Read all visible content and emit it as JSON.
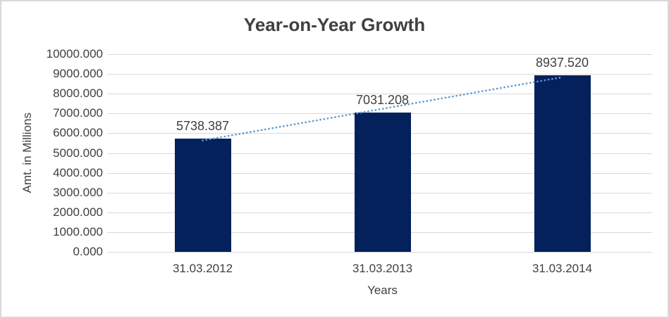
{
  "chart_data": {
    "type": "bar",
    "title": "Year-on-Year Growth",
    "xlabel": "Years",
    "ylabel": "Amt. in Millions",
    "categories": [
      "31.03.2012",
      "31.03.2013",
      "31.03.2014"
    ],
    "values": [
      5738.387,
      7031.208,
      8937.52
    ],
    "data_labels": [
      "5738.387",
      "7031.208",
      "8937.520"
    ],
    "ylim": [
      0,
      10000
    ],
    "ytick_step": 1000,
    "ytick_decimals": 3,
    "ytick_labels": [
      "0.000",
      "1000.000",
      "2000.000",
      "3000.000",
      "4000.000",
      "5000.000",
      "6000.000",
      "7000.000",
      "8000.000",
      "9000.000",
      "10000.000"
    ],
    "grid": true,
    "legend_position": "none",
    "trendline": {
      "type": "linear",
      "style": "dotted"
    }
  },
  "colors": {
    "bar": "#04215C",
    "trendline": "#5B9BD5",
    "gridline": "#D9D9D9",
    "text": "#404040",
    "frame_border": "#D9D9D9",
    "background": "#FFFFFF"
  }
}
